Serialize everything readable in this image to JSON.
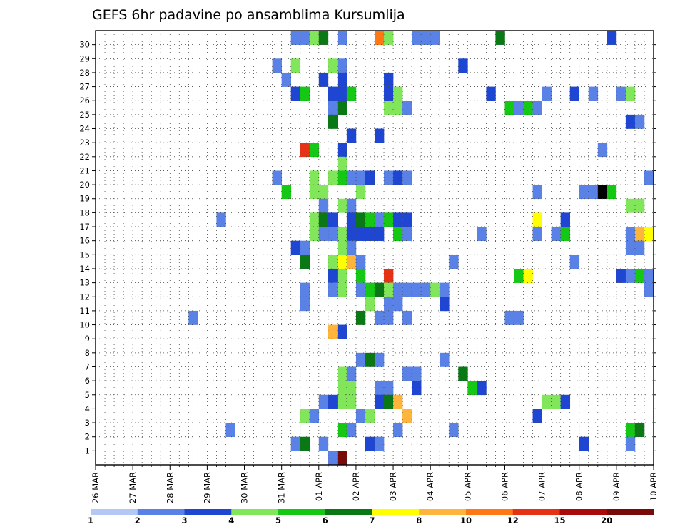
{
  "chart_data": {
    "type": "heatmap",
    "title": "GEFS 6hr padavine po ansamblima Kursumlija",
    "x_tick_labels": [
      "26 MAR",
      "27 MAR",
      "28 MAR",
      "29 MAR",
      "30 MAR",
      "31 MAR",
      "01 APR",
      "02 APR",
      "03 APR",
      "04 APR",
      "05 APR",
      "06 APR",
      "07 APR",
      "08 APR",
      "09 APR",
      "10 APR"
    ],
    "y_tick_labels": [
      "1",
      "2",
      "3",
      "4",
      "5",
      "6",
      "7",
      "8",
      "9",
      "10",
      "11",
      "12",
      "13",
      "14",
      "15",
      "16",
      "17",
      "18",
      "19",
      "20",
      "21",
      "22",
      "23",
      "24",
      "25",
      "26",
      "27",
      "28",
      "29",
      "30"
    ],
    "steps_per_day": 4,
    "total_steps": 60,
    "members": 31,
    "grid": "dotted",
    "colorbar": {
      "labels": [
        "1",
        "2",
        "3",
        "4",
        "5",
        "6",
        "7",
        "8",
        "10",
        "12",
        "15",
        "20"
      ],
      "colors": [
        "#b4c8f5",
        "#5a82e6",
        "#1e46d2",
        "#82e65a",
        "#14c814",
        "#0a7814",
        "#ffff00",
        "#ffb43c",
        "#ff7814",
        "#e63214",
        "#aa0a0a",
        "#780a0a"
      ]
    },
    "cells": [
      [
        30,
        21,
        1
      ],
      [
        30,
        22,
        1
      ],
      [
        30,
        23,
        3
      ],
      [
        30,
        24,
        5
      ],
      [
        30,
        26,
        1
      ],
      [
        30,
        30,
        8
      ],
      [
        30,
        31,
        3
      ],
      [
        30,
        34,
        1
      ],
      [
        30,
        35,
        1
      ],
      [
        30,
        36,
        1
      ],
      [
        30,
        43,
        5
      ],
      [
        30,
        55,
        2
      ],
      [
        28,
        19,
        1
      ],
      [
        28,
        21,
        3
      ],
      [
        28,
        25,
        3
      ],
      [
        28,
        26,
        1
      ],
      [
        28,
        39,
        2
      ],
      [
        27,
        20,
        1
      ],
      [
        27,
        24,
        2
      ],
      [
        27,
        26,
        2
      ],
      [
        27,
        31,
        2
      ],
      [
        26,
        21,
        2
      ],
      [
        26,
        22,
        4
      ],
      [
        26,
        25,
        2
      ],
      [
        26,
        26,
        2
      ],
      [
        26,
        27,
        4
      ],
      [
        26,
        31,
        2
      ],
      [
        26,
        32,
        3
      ],
      [
        26,
        42,
        2
      ],
      [
        26,
        48,
        1
      ],
      [
        26,
        51,
        2
      ],
      [
        26,
        53,
        1
      ],
      [
        26,
        56,
        1
      ],
      [
        26,
        57,
        3
      ],
      [
        25,
        25,
        1
      ],
      [
        25,
        26,
        5
      ],
      [
        25,
        31,
        3
      ],
      [
        25,
        32,
        3
      ],
      [
        25,
        33,
        1
      ],
      [
        25,
        44,
        4
      ],
      [
        25,
        45,
        1
      ],
      [
        25,
        46,
        4
      ],
      [
        25,
        47,
        1
      ],
      [
        24,
        25,
        5
      ],
      [
        24,
        57,
        2
      ],
      [
        24,
        58,
        1
      ],
      [
        23,
        27,
        2
      ],
      [
        23,
        30,
        2
      ],
      [
        22,
        22,
        9
      ],
      [
        22,
        23,
        4
      ],
      [
        22,
        26,
        2
      ],
      [
        22,
        54,
        1
      ],
      [
        21,
        26,
        3
      ],
      [
        20,
        19,
        1
      ],
      [
        20,
        23,
        3
      ],
      [
        20,
        25,
        3
      ],
      [
        20,
        26,
        4
      ],
      [
        20,
        27,
        1
      ],
      [
        20,
        28,
        1
      ],
      [
        20,
        29,
        2
      ],
      [
        20,
        31,
        1
      ],
      [
        20,
        32,
        2
      ],
      [
        20,
        33,
        1
      ],
      [
        20,
        59,
        1
      ],
      [
        19,
        20,
        4
      ],
      [
        19,
        23,
        3
      ],
      [
        19,
        24,
        3
      ],
      [
        19,
        28,
        3
      ],
      [
        19,
        47,
        1
      ],
      [
        19,
        52,
        1
      ],
      [
        19,
        53,
        1
      ],
      [
        19,
        54,
        12
      ],
      [
        19,
        55,
        4
      ],
      [
        18,
        24,
        1
      ],
      [
        18,
        26,
        3
      ],
      [
        18,
        27,
        1
      ],
      [
        18,
        57,
        3
      ],
      [
        18,
        58,
        3
      ],
      [
        17,
        13,
        1
      ],
      [
        17,
        23,
        3
      ],
      [
        17,
        24,
        5
      ],
      [
        17,
        25,
        2
      ],
      [
        17,
        27,
        2
      ],
      [
        17,
        28,
        5
      ],
      [
        17,
        29,
        4
      ],
      [
        17,
        30,
        1
      ],
      [
        17,
        31,
        4
      ],
      [
        17,
        32,
        2
      ],
      [
        17,
        33,
        2
      ],
      [
        17,
        47,
        6
      ],
      [
        17,
        50,
        2
      ],
      [
        16,
        23,
        3
      ],
      [
        16,
        24,
        1
      ],
      [
        16,
        25,
        1
      ],
      [
        16,
        26,
        3
      ],
      [
        16,
        27,
        2
      ],
      [
        16,
        28,
        2
      ],
      [
        16,
        29,
        2
      ],
      [
        16,
        30,
        2
      ],
      [
        16,
        32,
        4
      ],
      [
        16,
        33,
        1
      ],
      [
        16,
        41,
        1
      ],
      [
        16,
        47,
        1
      ],
      [
        16,
        49,
        1
      ],
      [
        16,
        50,
        4
      ],
      [
        16,
        57,
        1
      ],
      [
        16,
        58,
        7
      ],
      [
        16,
        59,
        6
      ],
      [
        15,
        21,
        2
      ],
      [
        15,
        22,
        1
      ],
      [
        15,
        26,
        3
      ],
      [
        15,
        27,
        1
      ],
      [
        15,
        57,
        1
      ],
      [
        15,
        58,
        1
      ],
      [
        14,
        22,
        5
      ],
      [
        14,
        25,
        3
      ],
      [
        14,
        26,
        6
      ],
      [
        14,
        27,
        7
      ],
      [
        14,
        28,
        1
      ],
      [
        14,
        38,
        1
      ],
      [
        14,
        51,
        1
      ],
      [
        13,
        25,
        2
      ],
      [
        13,
        26,
        3
      ],
      [
        13,
        28,
        4
      ],
      [
        13,
        31,
        9
      ],
      [
        13,
        45,
        4
      ],
      [
        13,
        46,
        6
      ],
      [
        13,
        56,
        2
      ],
      [
        13,
        57,
        1
      ],
      [
        13,
        58,
        4
      ],
      [
        13,
        59,
        1
      ],
      [
        12,
        22,
        1
      ],
      [
        12,
        25,
        1
      ],
      [
        12,
        26,
        3
      ],
      [
        12,
        28,
        1
      ],
      [
        12,
        29,
        4
      ],
      [
        12,
        30,
        5
      ],
      [
        12,
        31,
        3
      ],
      [
        12,
        32,
        1
      ],
      [
        12,
        33,
        1
      ],
      [
        12,
        34,
        1
      ],
      [
        12,
        35,
        1
      ],
      [
        12,
        36,
        3
      ],
      [
        12,
        37,
        1
      ],
      [
        12,
        59,
        1
      ],
      [
        11,
        22,
        1
      ],
      [
        11,
        29,
        3
      ],
      [
        11,
        31,
        1
      ],
      [
        11,
        32,
        1
      ],
      [
        11,
        37,
        2
      ],
      [
        10,
        10,
        1
      ],
      [
        10,
        28,
        5
      ],
      [
        10,
        30,
        1
      ],
      [
        10,
        31,
        1
      ],
      [
        10,
        33,
        1
      ],
      [
        10,
        44,
        1
      ],
      [
        10,
        45,
        1
      ],
      [
        9,
        25,
        7
      ],
      [
        9,
        26,
        2
      ],
      [
        7,
        28,
        1
      ],
      [
        7,
        29,
        5
      ],
      [
        7,
        30,
        1
      ],
      [
        7,
        37,
        1
      ],
      [
        6,
        26,
        3
      ],
      [
        6,
        27,
        1
      ],
      [
        6,
        33,
        1
      ],
      [
        6,
        34,
        1
      ],
      [
        6,
        39,
        5
      ],
      [
        5,
        26,
        3
      ],
      [
        5,
        27,
        3
      ],
      [
        5,
        30,
        1
      ],
      [
        5,
        31,
        1
      ],
      [
        5,
        34,
        2
      ],
      [
        5,
        40,
        4
      ],
      [
        5,
        41,
        2
      ],
      [
        4,
        24,
        1
      ],
      [
        4,
        25,
        2
      ],
      [
        4,
        26,
        3
      ],
      [
        4,
        27,
        3
      ],
      [
        4,
        30,
        2
      ],
      [
        4,
        31,
        5
      ],
      [
        4,
        32,
        7
      ],
      [
        4,
        48,
        3
      ],
      [
        4,
        49,
        3
      ],
      [
        4,
        50,
        2
      ],
      [
        3,
        22,
        3
      ],
      [
        3,
        23,
        1
      ],
      [
        3,
        28,
        1
      ],
      [
        3,
        29,
        3
      ],
      [
        3,
        33,
        7
      ],
      [
        3,
        47,
        2
      ],
      [
        2,
        14,
        1
      ],
      [
        2,
        26,
        4
      ],
      [
        2,
        27,
        1
      ],
      [
        2,
        32,
        1
      ],
      [
        2,
        38,
        1
      ],
      [
        2,
        57,
        4
      ],
      [
        2,
        58,
        5
      ],
      [
        1,
        21,
        1
      ],
      [
        1,
        22,
        5
      ],
      [
        1,
        24,
        1
      ],
      [
        1,
        29,
        2
      ],
      [
        1,
        30,
        1
      ],
      [
        1,
        52,
        2
      ],
      [
        1,
        57,
        1
      ],
      [
        0,
        25,
        1
      ],
      [
        0,
        26,
        11
      ]
    ]
  }
}
